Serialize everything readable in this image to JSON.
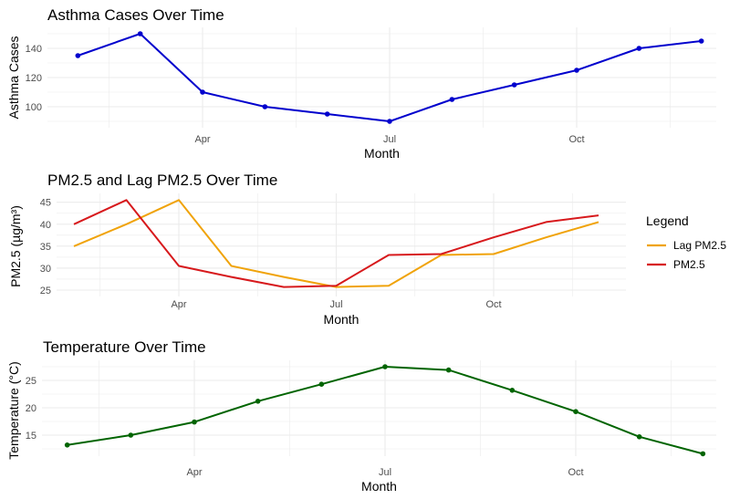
{
  "chart_data": [
    {
      "type": "line",
      "title": "Asthma Cases Over Time",
      "xlabel": "Month",
      "ylabel": "Asthma Cases",
      "x": [
        2,
        3,
        4,
        5,
        6,
        7,
        8,
        9,
        10,
        11,
        12
      ],
      "x_ticks": [
        {
          "v": 4,
          "label": "Apr"
        },
        {
          "v": 7,
          "label": "Jul"
        },
        {
          "v": 10,
          "label": "Oct"
        }
      ],
      "y_ticks": [
        100,
        120,
        140
      ],
      "ylim": [
        90,
        150
      ],
      "grid": true,
      "points": true,
      "series": [
        {
          "name": "Asthma Cases",
          "color": "#0000CD",
          "values": [
            135,
            150,
            110,
            100,
            95,
            90,
            105,
            115,
            125,
            140,
            145
          ]
        }
      ]
    },
    {
      "type": "line",
      "title": "PM2.5 and Lag PM2.5 Over Time",
      "xlabel": "Month",
      "ylabel": "PM2.5 (µg/m³)",
      "x": [
        2,
        3,
        4,
        5,
        6,
        7,
        8,
        9,
        10,
        11,
        12
      ],
      "x_ticks": [
        {
          "v": 4,
          "label": "Apr"
        },
        {
          "v": 7,
          "label": "Jul"
        },
        {
          "v": 10,
          "label": "Oct"
        }
      ],
      "y_ticks": [
        25,
        30,
        35,
        40,
        45
      ],
      "ylim": [
        25,
        45.5
      ],
      "grid": true,
      "points": false,
      "legend": {
        "title": "Legend",
        "position": "right"
      },
      "series": [
        {
          "name": "Lag PM2.5",
          "color": "#F0A30A",
          "values": [
            35,
            40,
            45.5,
            30.5,
            28,
            25.7,
            26,
            33,
            33.2,
            37,
            40.5
          ]
        },
        {
          "name": "PM2.5",
          "color": "#D7191C",
          "values": [
            40,
            45.5,
            30.5,
            28,
            25.7,
            26,
            33,
            33.2,
            37,
            40.5,
            42
          ]
        }
      ]
    },
    {
      "type": "line",
      "title": "Temperature Over Time",
      "xlabel": "Month",
      "ylabel": "Temperature (°C)",
      "x": [
        2,
        3,
        4,
        5,
        6,
        7,
        8,
        9,
        10,
        11,
        12
      ],
      "x_ticks": [
        {
          "v": 4,
          "label": "Apr"
        },
        {
          "v": 7,
          "label": "Jul"
        },
        {
          "v": 10,
          "label": "Oct"
        }
      ],
      "y_ticks": [
        15,
        20,
        25
      ],
      "ylim": [
        11.6,
        27.5
      ],
      "grid": true,
      "points": true,
      "series": [
        {
          "name": "Temperature",
          "color": "#006400",
          "values": [
            13.2,
            15,
            17.4,
            21.2,
            24.3,
            27.5,
            26.9,
            23.2,
            19.3,
            14.7,
            11.6
          ]
        }
      ]
    }
  ]
}
